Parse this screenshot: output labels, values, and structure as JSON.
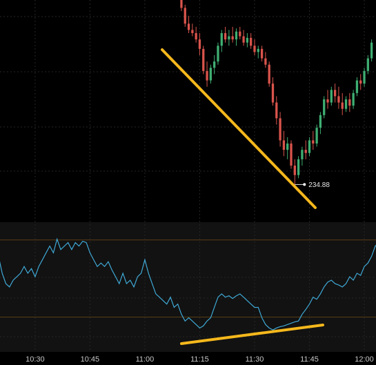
{
  "chart_data": [
    {
      "type": "candlestick",
      "x": [
        670,
        671,
        672,
        673,
        674,
        675,
        676,
        677,
        678,
        679,
        680,
        681,
        682,
        683,
        684,
        685,
        686,
        687,
        688,
        689,
        690,
        691,
        692,
        693,
        694,
        695,
        696,
        697,
        698,
        699,
        700,
        701,
        702,
        703,
        704,
        705,
        706,
        707,
        708,
        709,
        710,
        711,
        712,
        713,
        714,
        715,
        716,
        717,
        718,
        719,
        720,
        721,
        722
      ],
      "open": [
        236.1,
        236.0,
        235.9,
        235.86,
        235.84,
        235.8,
        235.74,
        235.6,
        235.54,
        235.62,
        235.66,
        235.76,
        235.84,
        235.8,
        235.82,
        235.8,
        235.85,
        235.82,
        235.78,
        235.81,
        235.76,
        235.72,
        235.74,
        235.68,
        235.64,
        235.52,
        235.4,
        235.3,
        235.16,
        235.1,
        235.14,
        235.0,
        234.94,
        235.04,
        235.1,
        235.08,
        235.16,
        235.14,
        235.24,
        235.32,
        235.42,
        235.4,
        235.48,
        235.44,
        235.4,
        235.36,
        235.42,
        235.38,
        235.46,
        235.54,
        235.52,
        235.6,
        235.68
      ],
      "high": [
        236.12,
        236.02,
        235.95,
        235.9,
        235.88,
        235.84,
        235.76,
        235.66,
        235.64,
        235.7,
        235.78,
        235.86,
        235.88,
        235.86,
        235.88,
        235.87,
        235.88,
        235.86,
        235.84,
        235.84,
        235.8,
        235.76,
        235.76,
        235.72,
        235.66,
        235.56,
        235.44,
        235.34,
        235.22,
        235.18,
        235.16,
        235.04,
        235.06,
        235.12,
        235.16,
        235.18,
        235.22,
        235.26,
        235.34,
        235.44,
        235.48,
        235.5,
        235.52,
        235.5,
        235.46,
        235.44,
        235.46,
        235.48,
        235.56,
        235.58,
        235.62,
        235.7,
        235.8
      ],
      "low": [
        235.98,
        235.88,
        235.84,
        235.82,
        235.78,
        235.7,
        235.58,
        235.5,
        235.52,
        235.58,
        235.64,
        235.72,
        235.78,
        235.76,
        235.78,
        235.76,
        235.8,
        235.76,
        235.75,
        235.74,
        235.7,
        235.68,
        235.66,
        235.62,
        235.5,
        235.38,
        235.26,
        235.12,
        235.06,
        235.04,
        234.98,
        234.88,
        234.92,
        235.0,
        235.04,
        235.06,
        235.1,
        235.12,
        235.2,
        235.3,
        235.36,
        235.38,
        235.4,
        235.36,
        235.32,
        235.34,
        235.34,
        235.36,
        235.44,
        235.48,
        235.5,
        235.58,
        235.66
      ],
      "close": [
        236.0,
        235.9,
        235.86,
        235.84,
        235.8,
        235.74,
        235.6,
        235.54,
        235.62,
        235.66,
        235.76,
        235.84,
        235.8,
        235.82,
        235.8,
        235.85,
        235.82,
        235.78,
        235.81,
        235.76,
        235.72,
        235.74,
        235.68,
        235.64,
        235.52,
        235.4,
        235.3,
        235.16,
        235.1,
        235.14,
        235.0,
        234.94,
        235.04,
        235.1,
        235.08,
        235.16,
        235.14,
        235.24,
        235.32,
        235.42,
        235.4,
        235.48,
        235.44,
        235.4,
        235.36,
        235.42,
        235.38,
        235.46,
        235.54,
        235.52,
        235.6,
        235.68,
        235.78
      ],
      "up_color": "#3fae72",
      "down_color": "#d9544c",
      "ylim": [
        234.65,
        236.05
      ],
      "xlim": [
        620.4,
        723.2
      ],
      "price_label": 234.88,
      "price_label_x": 701
    },
    {
      "type": "line",
      "x": [
        620,
        621,
        622,
        623,
        624,
        625,
        626,
        627,
        628,
        629,
        630,
        631,
        632,
        633,
        634,
        635,
        636,
        637,
        638,
        639,
        640,
        641,
        642,
        643,
        644,
        645,
        646,
        647,
        648,
        649,
        650,
        651,
        652,
        653,
        654,
        655,
        656,
        657,
        658,
        659,
        660,
        661,
        662,
        663,
        664,
        665,
        666,
        667,
        668,
        669,
        670,
        671,
        672,
        673,
        674,
        675,
        676,
        677,
        678,
        679,
        680,
        681,
        682,
        683,
        684,
        685,
        686,
        687,
        688,
        689,
        690,
        691,
        692,
        693,
        694,
        695,
        696,
        697,
        698,
        699,
        700,
        701,
        702,
        703,
        704,
        705,
        706,
        707,
        708,
        709,
        710,
        711,
        712,
        713,
        714,
        715,
        716,
        717,
        718,
        719,
        720,
        721,
        722,
        723,
        724
      ],
      "values": [
        61.5,
        52.7,
        47.3,
        45.6,
        49.1,
        50.9,
        52.7,
        56.2,
        52.7,
        55.1,
        50.9,
        56.2,
        59.7,
        63.3,
        66.8,
        63.3,
        70.4,
        65,
        66.8,
        68.6,
        65,
        68.6,
        66.8,
        69.3,
        68.6,
        63.3,
        59.7,
        56.2,
        58,
        56.2,
        58.7,
        54.4,
        50.9,
        47.3,
        52.7,
        47.3,
        49.1,
        45.6,
        50.9,
        52.7,
        59.7,
        52.7,
        47.3,
        42,
        40.3,
        38.5,
        36.7,
        40.3,
        35,
        36.7,
        31.4,
        27.9,
        29.6,
        27.9,
        26.1,
        24.3,
        25.4,
        27.9,
        29.6,
        35,
        40.3,
        42,
        40.3,
        41,
        39.6,
        41,
        42,
        40.3,
        38.5,
        36.7,
        35,
        35,
        29.6,
        26.1,
        24.3,
        23.3,
        24.3,
        25,
        25.4,
        26.1,
        26.8,
        27.5,
        27.9,
        31.4,
        33.9,
        36.7,
        40.3,
        39.2,
        42,
        45.6,
        48.1,
        49.1,
        47.3,
        46.6,
        45.6,
        47.3,
        50.9,
        49.1,
        52.7,
        51.6,
        56.2,
        58,
        61.5,
        66.8,
        68.6
      ],
      "color": "#3fa9d6",
      "ylim": [
        11.9,
        79.2
      ],
      "levels": [
        70,
        30
      ],
      "level_color": "#5a3d14",
      "xlim": [
        620.4,
        723.2
      ],
      "xticks": [
        {
          "value": 630,
          "label": "10:30"
        },
        {
          "value": 645,
          "label": "10:45"
        },
        {
          "value": 660,
          "label": "11:00"
        },
        {
          "value": 675,
          "label": "11:15"
        },
        {
          "value": 690,
          "label": "11:30"
        },
        {
          "value": 705,
          "label": "11:45"
        },
        {
          "value": 720,
          "label": "12:00"
        }
      ]
    }
  ]
}
